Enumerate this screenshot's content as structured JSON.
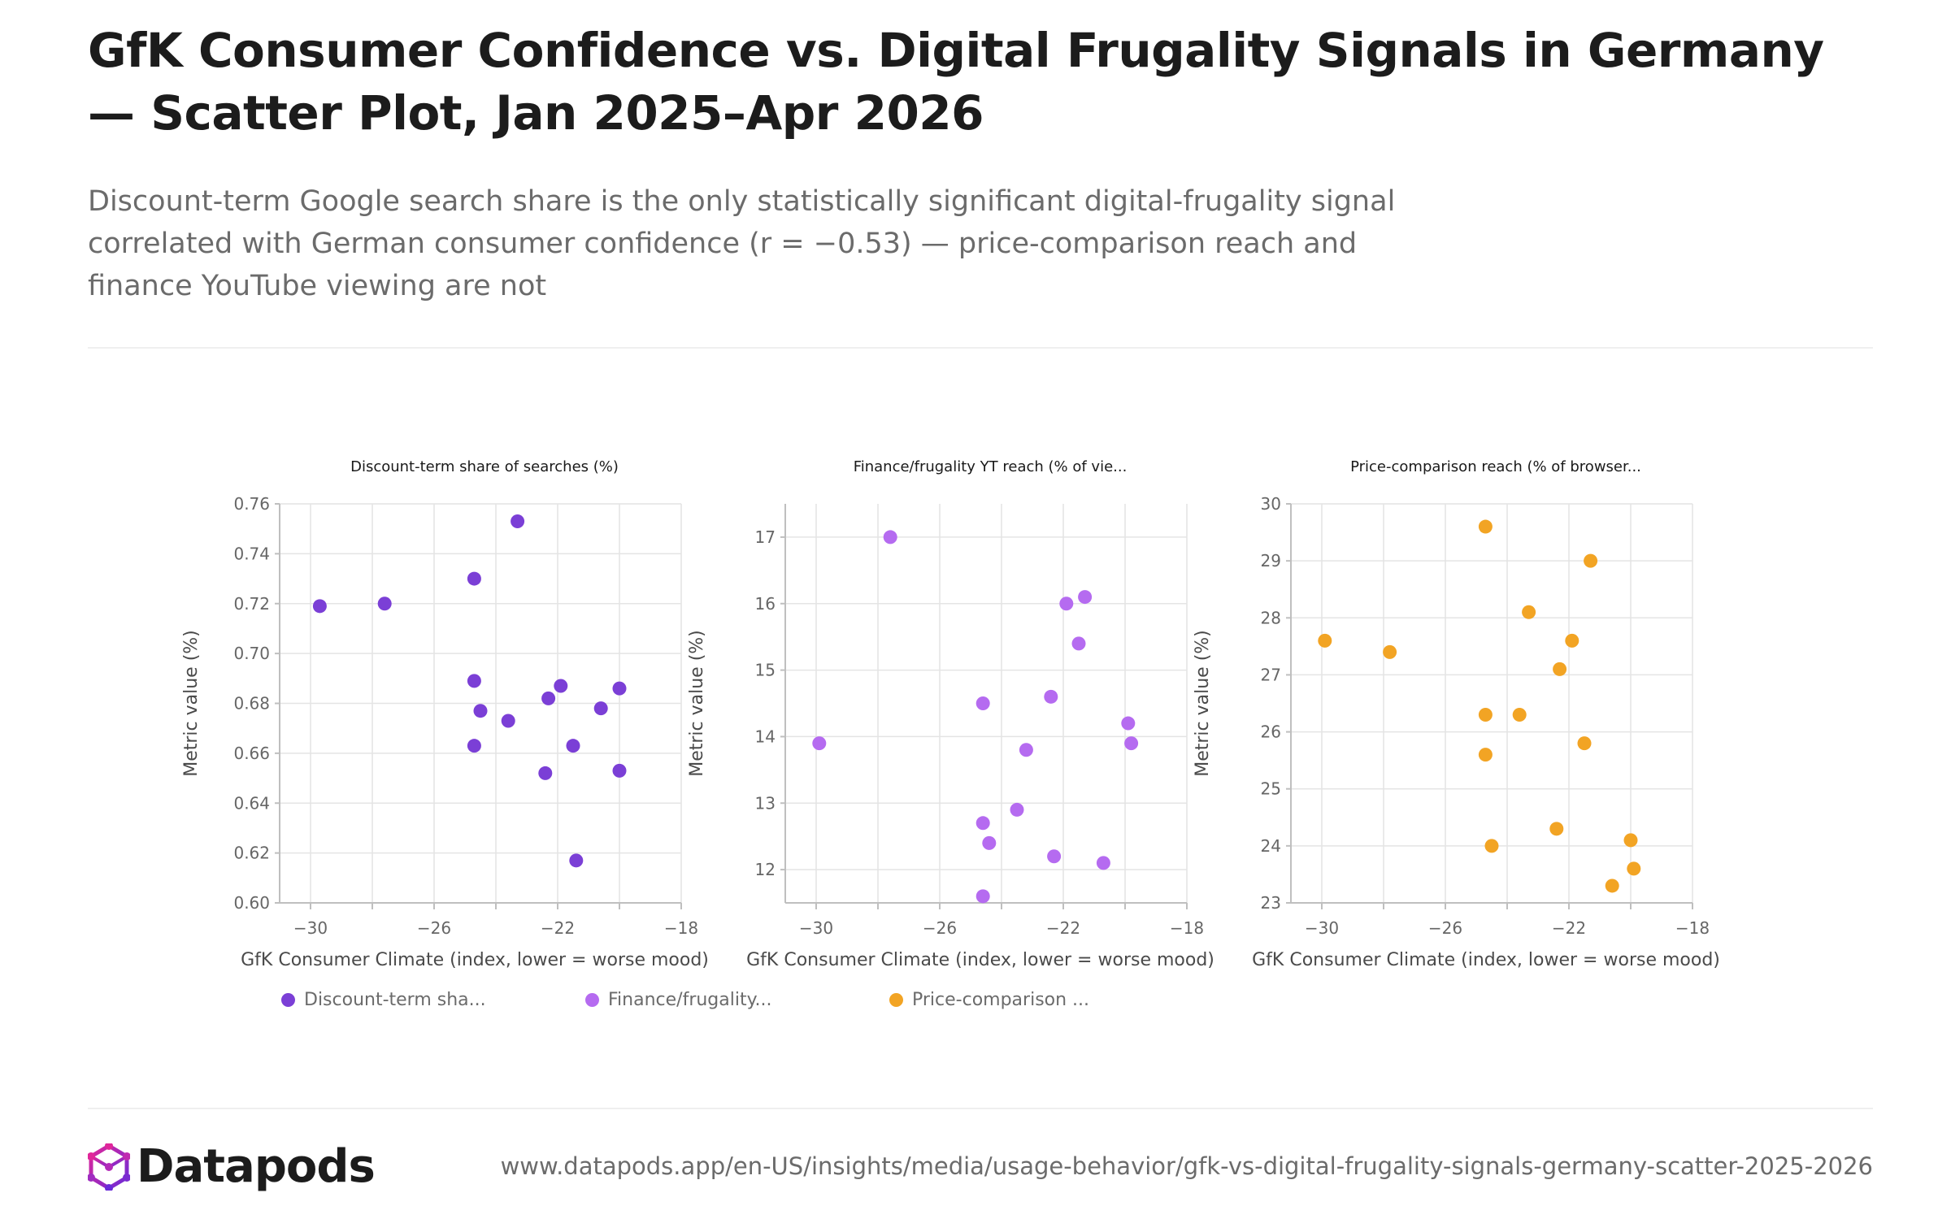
{
  "header": {
    "title": "GfK Consumer Confidence vs. Digital Frugality Signals in Germany — Scatter Plot, Jan 2025–Apr 2026",
    "subtitle": "Discount-term Google search share is the only statistically significant digital-frugality signal correlated with German consumer confidence (r = −0.53) — price-comparison reach and finance YouTube viewing are not"
  },
  "footer": {
    "brand": "Datapods",
    "url": "www.datapods.app/en-US/insights/media/usage-behavior/gfk-vs-digital-frugality-signals-germany-scatter-2025-2026"
  },
  "colors": {
    "discount": "#7b3fd6",
    "finance": "#b56bf0",
    "price": "#f2a424",
    "grid": "#e4e4e4",
    "axis": "#bfbfbf"
  },
  "legend": [
    {
      "label": "Discount-term sha...",
      "color": "#7b3fd6"
    },
    {
      "label": "Finance/frugality...",
      "color": "#b56bf0"
    },
    {
      "label": "Price-comparison ...",
      "color": "#f2a424"
    }
  ],
  "chart_data": [
    {
      "type": "scatter",
      "title": "Discount-term share of searches (%)",
      "xlabel": "GfK Consumer Climate (index, lower = worse mood)",
      "ylabel": "Metric value (%)",
      "xlim": [
        -31,
        -18
      ],
      "ylim": [
        0.6,
        0.76
      ],
      "xticks": [
        -30,
        -26,
        -22,
        -18
      ],
      "yticks": [
        0.6,
        0.62,
        0.64,
        0.66,
        0.68,
        0.7,
        0.72,
        0.74,
        0.76
      ],
      "ytick_decimals": 2,
      "color": "#7b3fd6",
      "x": [
        -29.7,
        -27.6,
        -24.7,
        -23.3,
        -24.7,
        -24.5,
        -23.6,
        -22.3,
        -21.9,
        -21.5,
        -20.6,
        -20.0,
        -22.4,
        -21.4,
        -20.0,
        -24.7
      ],
      "y": [
        0.719,
        0.72,
        0.73,
        0.753,
        0.689,
        0.677,
        0.673,
        0.682,
        0.687,
        0.663,
        0.678,
        0.686,
        0.652,
        0.617,
        0.653,
        0.663
      ]
    },
    {
      "type": "scatter",
      "title": "Finance/frugality YT reach (% of vie...",
      "xlabel": "GfK Consumer Climate (index, lower = worse mood)",
      "ylabel": "Metric value (%)",
      "xlim": [
        -31,
        -18
      ],
      "ylim": [
        11.5,
        17.5
      ],
      "xticks": [
        -30,
        -26,
        -22,
        -18
      ],
      "yticks": [
        12,
        13,
        14,
        15,
        16,
        17
      ],
      "ytick_decimals": 0,
      "color": "#b56bf0",
      "x": [
        -29.9,
        -27.6,
        -21.9,
        -21.3,
        -21.5,
        -22.4,
        -24.6,
        -23.2,
        -19.9,
        -19.8,
        -24.6,
        -24.4,
        -23.5,
        -22.3,
        -20.7,
        -24.6
      ],
      "y": [
        13.9,
        17.0,
        16.0,
        16.1,
        15.4,
        14.6,
        14.5,
        13.8,
        14.2,
        13.9,
        12.7,
        12.4,
        12.9,
        12.2,
        12.1,
        11.6
      ]
    },
    {
      "type": "scatter",
      "title": "Price-comparison reach (% of browser...",
      "xlabel": "GfK Consumer Climate (index, lower = worse mood)",
      "ylabel": "Metric value (%)",
      "xlim": [
        -31,
        -18
      ],
      "ylim": [
        23,
        30
      ],
      "xticks": [
        -30,
        -26,
        -22,
        -18
      ],
      "yticks": [
        23,
        24,
        25,
        26,
        27,
        28,
        29,
        30
      ],
      "ytick_decimals": 0,
      "color": "#f2a424",
      "x": [
        -24.7,
        -21.3,
        -23.3,
        -21.9,
        -22.3,
        -29.9,
        -27.8,
        -24.7,
        -23.6,
        -21.5,
        -24.7,
        -22.4,
        -20.0,
        -24.5,
        -19.9,
        -20.6
      ],
      "y": [
        29.6,
        29.0,
        28.1,
        27.6,
        27.1,
        27.6,
        27.4,
        26.3,
        26.3,
        25.8,
        25.6,
        24.3,
        24.1,
        24.0,
        23.6,
        23.3
      ]
    }
  ]
}
